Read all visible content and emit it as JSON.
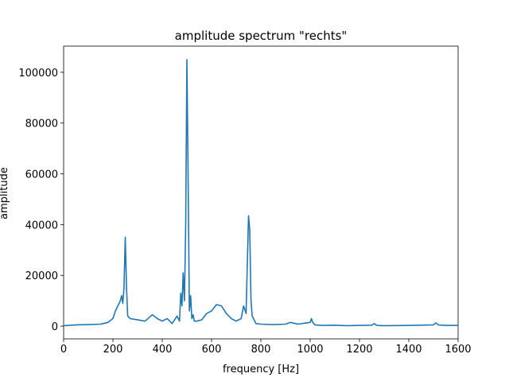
{
  "chart_data": {
    "type": "line",
    "title": "amplitude spectrum \"rechts\"",
    "x_label": "frequency [Hz]",
    "y_label": "amplitude",
    "x": [
      0,
      50,
      100,
      150,
      180,
      200,
      210,
      220,
      230,
      235,
      240,
      245,
      250,
      255,
      260,
      270,
      300,
      330,
      360,
      380,
      400,
      420,
      440,
      460,
      470,
      475,
      480,
      485,
      490,
      495,
      500,
      505,
      510,
      515,
      520,
      525,
      530,
      540,
      560,
      580,
      600,
      620,
      640,
      660,
      680,
      700,
      720,
      730,
      740,
      745,
      750,
      755,
      760,
      765,
      770,
      780,
      800,
      850,
      900,
      920,
      950,
      1000,
      1005,
      1010,
      1020,
      1050,
      1100,
      1150,
      1200,
      1250,
      1260,
      1270,
      1300,
      1400,
      1500,
      1510,
      1520,
      1550,
      1600
    ],
    "values": [
      200,
      500,
      600,
      800,
      1500,
      3000,
      6000,
      8000,
      10000,
      12000,
      9000,
      15000,
      35000,
      15000,
      4000,
      3000,
      2500,
      2000,
      4500,
      3000,
      2000,
      3000,
      1000,
      4000,
      2000,
      13000,
      8000,
      21000,
      10000,
      40000,
      105000,
      60000,
      6000,
      12000,
      3000,
      4500,
      2000,
      2000,
      2500,
      5000,
      6000,
      8500,
      8000,
      5000,
      3000,
      2000,
      3000,
      8000,
      5000,
      25000,
      43500,
      38000,
      10000,
      4000,
      3000,
      1000,
      800,
      600,
      800,
      1500,
      800,
      1500,
      3000,
      1500,
      500,
      300,
      400,
      200,
      300,
      400,
      1000,
      300,
      200,
      300,
      500,
      1300,
      500,
      300,
      300
    ],
    "color": "#1f77b4",
    "xlim": [
      0,
      1600
    ],
    "ylim": [
      -5000,
      110300
    ],
    "xticks": [
      0,
      200,
      400,
      600,
      800,
      1000,
      1200,
      1400,
      1600
    ],
    "yticks": [
      0,
      20000,
      40000,
      60000,
      80000,
      100000
    ]
  }
}
